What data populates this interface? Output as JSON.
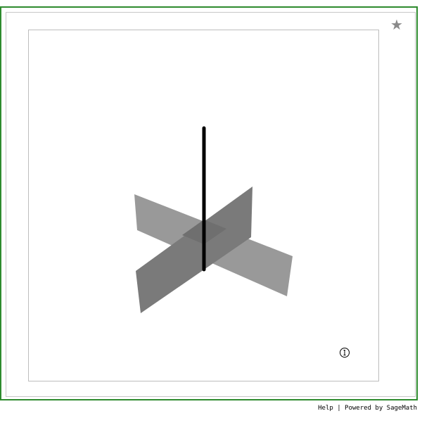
{
  "toolbar": {
    "star_icon": "star-icon",
    "star_glyph": "★"
  },
  "viewer": {
    "info_icon": "info-icon",
    "info_glyph": "ⓘ",
    "colors": {
      "frame_green": "#2e8b2e",
      "plane_light": "#999999",
      "plane_dark": "#7a7a7a",
      "line": "#000000"
    }
  },
  "footer": {
    "help_label": "Help",
    "separator": "|",
    "powered_label": "Powered by SageMath"
  }
}
